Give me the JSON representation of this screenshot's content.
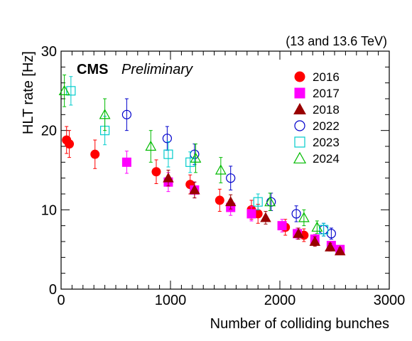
{
  "chart_data": {
    "type": "scatter",
    "title": "",
    "energy_label": "(13 and 13.6 TeV)",
    "experiment_label": "CMS",
    "status_label": "Preliminary",
    "xlabel": "Number of colliding bunches",
    "ylabel": "HLT rate [Hz]",
    "xlim": [
      0,
      3000
    ],
    "ylim": [
      0,
      30
    ],
    "x_ticks": [
      0,
      1000,
      2000,
      3000
    ],
    "x_tick_labels": [
      "0",
      "1000",
      "2000",
      "3000"
    ],
    "y_ticks": [
      0,
      10,
      20,
      30
    ],
    "y_tick_labels": [
      "0",
      "10",
      "20",
      "30"
    ],
    "grid": false,
    "legend_position": "top-right",
    "series": [
      {
        "name": "2016",
        "marker": "circle",
        "filled": true,
        "color": "#ff0000",
        "points": [
          {
            "x": 50,
            "y": 18.8,
            "err": 1.7
          },
          {
            "x": 75,
            "y": 18.3,
            "err": 1.7
          },
          {
            "x": 310,
            "y": 17.0,
            "err": 1.8
          },
          {
            "x": 870,
            "y": 14.8,
            "err": 1.5
          },
          {
            "x": 1180,
            "y": 13.2,
            "err": 1.2
          },
          {
            "x": 1450,
            "y": 11.2,
            "err": 1.4
          },
          {
            "x": 1740,
            "y": 10.0,
            "err": 1.2
          },
          {
            "x": 1800,
            "y": 9.5,
            "err": 1.2
          },
          {
            "x": 2050,
            "y": 7.8,
            "err": 1.0
          },
          {
            "x": 2220,
            "y": 6.8,
            "err": 0.8
          }
        ]
      },
      {
        "name": "2017",
        "marker": "square",
        "filled": true,
        "color": "#ff00ff",
        "points": [
          {
            "x": 600,
            "y": 16.0,
            "err": 1.4
          },
          {
            "x": 980,
            "y": 13.5,
            "err": 1.2
          },
          {
            "x": 1220,
            "y": 12.5,
            "err": 1.0
          },
          {
            "x": 1550,
            "y": 10.3,
            "err": 1.0
          },
          {
            "x": 1740,
            "y": 9.5,
            "err": 0.9
          },
          {
            "x": 2020,
            "y": 8.0,
            "err": 0.8
          },
          {
            "x": 2160,
            "y": 7.0,
            "err": 0.7
          },
          {
            "x": 2320,
            "y": 6.3,
            "err": 0.6
          },
          {
            "x": 2470,
            "y": 5.5,
            "err": 0.5
          },
          {
            "x": 2550,
            "y": 5.0,
            "err": 0.4
          }
        ]
      },
      {
        "name": "2018",
        "marker": "triangle",
        "filled": true,
        "color": "#990000",
        "points": [
          {
            "x": 980,
            "y": 14.0,
            "err": 1.0
          },
          {
            "x": 1220,
            "y": 12.5,
            "err": 1.0
          },
          {
            "x": 1550,
            "y": 11.0,
            "err": 0.9
          },
          {
            "x": 1870,
            "y": 9.0,
            "err": 0.8
          },
          {
            "x": 2170,
            "y": 7.0,
            "err": 0.7
          },
          {
            "x": 2320,
            "y": 6.0,
            "err": 0.6
          },
          {
            "x": 2460,
            "y": 5.3,
            "err": 0.5
          },
          {
            "x": 2550,
            "y": 4.8,
            "err": 0.4
          }
        ]
      },
      {
        "name": "2022",
        "marker": "circle",
        "filled": false,
        "color": "#0000cc",
        "points": [
          {
            "x": 600,
            "y": 22.0,
            "err": 2.0
          },
          {
            "x": 970,
            "y": 19.0,
            "err": 1.5
          },
          {
            "x": 1220,
            "y": 17.0,
            "err": 1.3
          },
          {
            "x": 1550,
            "y": 14.0,
            "err": 1.5
          },
          {
            "x": 1920,
            "y": 11.0,
            "err": 1.1
          },
          {
            "x": 2150,
            "y": 9.5,
            "err": 1.0
          },
          {
            "x": 2400,
            "y": 7.5,
            "err": 0.8
          },
          {
            "x": 2470,
            "y": 7.0,
            "err": 0.7
          }
        ]
      },
      {
        "name": "2023",
        "marker": "square",
        "filled": false,
        "color": "#00cccc",
        "points": [
          {
            "x": 90,
            "y": 25.0,
            "err": 1.8
          },
          {
            "x": 400,
            "y": 20.0,
            "err": 1.8
          },
          {
            "x": 980,
            "y": 17.0,
            "err": 1.6
          },
          {
            "x": 1180,
            "y": 16.0,
            "err": 1.3
          },
          {
            "x": 1800,
            "y": 11.0,
            "err": 1.0
          },
          {
            "x": 2400,
            "y": 7.5,
            "err": 0.8
          }
        ]
      },
      {
        "name": "2024",
        "marker": "triangle",
        "filled": false,
        "color": "#00bb00",
        "points": [
          {
            "x": 30,
            "y": 25.0,
            "err": 2.0
          },
          {
            "x": 400,
            "y": 22.0,
            "err": 2.0
          },
          {
            "x": 820,
            "y": 18.0,
            "err": 2.0
          },
          {
            "x": 1230,
            "y": 16.5,
            "err": 1.8
          },
          {
            "x": 1460,
            "y": 15.0,
            "err": 1.6
          },
          {
            "x": 1910,
            "y": 11.0,
            "err": 1.1
          },
          {
            "x": 2220,
            "y": 9.0,
            "err": 1.0
          },
          {
            "x": 2340,
            "y": 7.8,
            "err": 0.8
          }
        ]
      }
    ]
  }
}
